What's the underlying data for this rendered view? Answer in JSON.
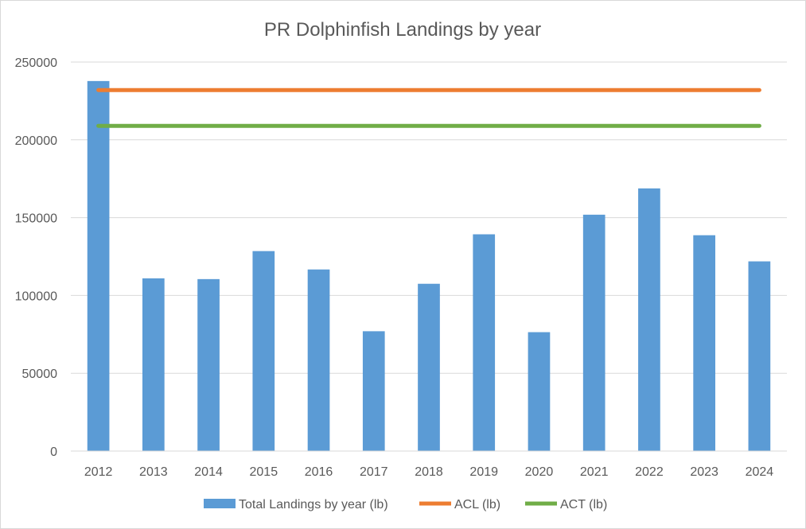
{
  "chart_data": {
    "type": "bar",
    "title": "PR Dolphinfish Landings by year",
    "xlabel": "",
    "ylabel": "",
    "ylim": [
      0,
      250000
    ],
    "yticks": [
      0,
      50000,
      100000,
      150000,
      200000,
      250000
    ],
    "ytick_labels": [
      "0",
      "50000",
      "100000",
      "150000",
      "200000",
      "250000"
    ],
    "categories": [
      "2012",
      "2013",
      "2014",
      "2015",
      "2016",
      "2017",
      "2018",
      "2019",
      "2020",
      "2021",
      "2022",
      "2023",
      "2024"
    ],
    "grid": true,
    "legend_position": "bottom",
    "series": [
      {
        "name": "Total Landings by year (lb)",
        "kind": "bar",
        "color": "#5B9BD5",
        "values": [
          237800,
          111000,
          110500,
          128500,
          116700,
          77000,
          107500,
          139300,
          76400,
          151900,
          168800,
          138700,
          121900
        ]
      },
      {
        "name": "ACL (lb)",
        "kind": "line",
        "color": "#ED7D31",
        "values": [
          232000,
          232000,
          232000,
          232000,
          232000,
          232000,
          232000,
          232000,
          232000,
          232000,
          232000,
          232000,
          232000
        ]
      },
      {
        "name": "ACT (lb)",
        "kind": "line",
        "color": "#70AD47",
        "values": [
          209000,
          209000,
          209000,
          209000,
          209000,
          209000,
          209000,
          209000,
          209000,
          209000,
          209000,
          209000,
          209000
        ]
      }
    ]
  }
}
